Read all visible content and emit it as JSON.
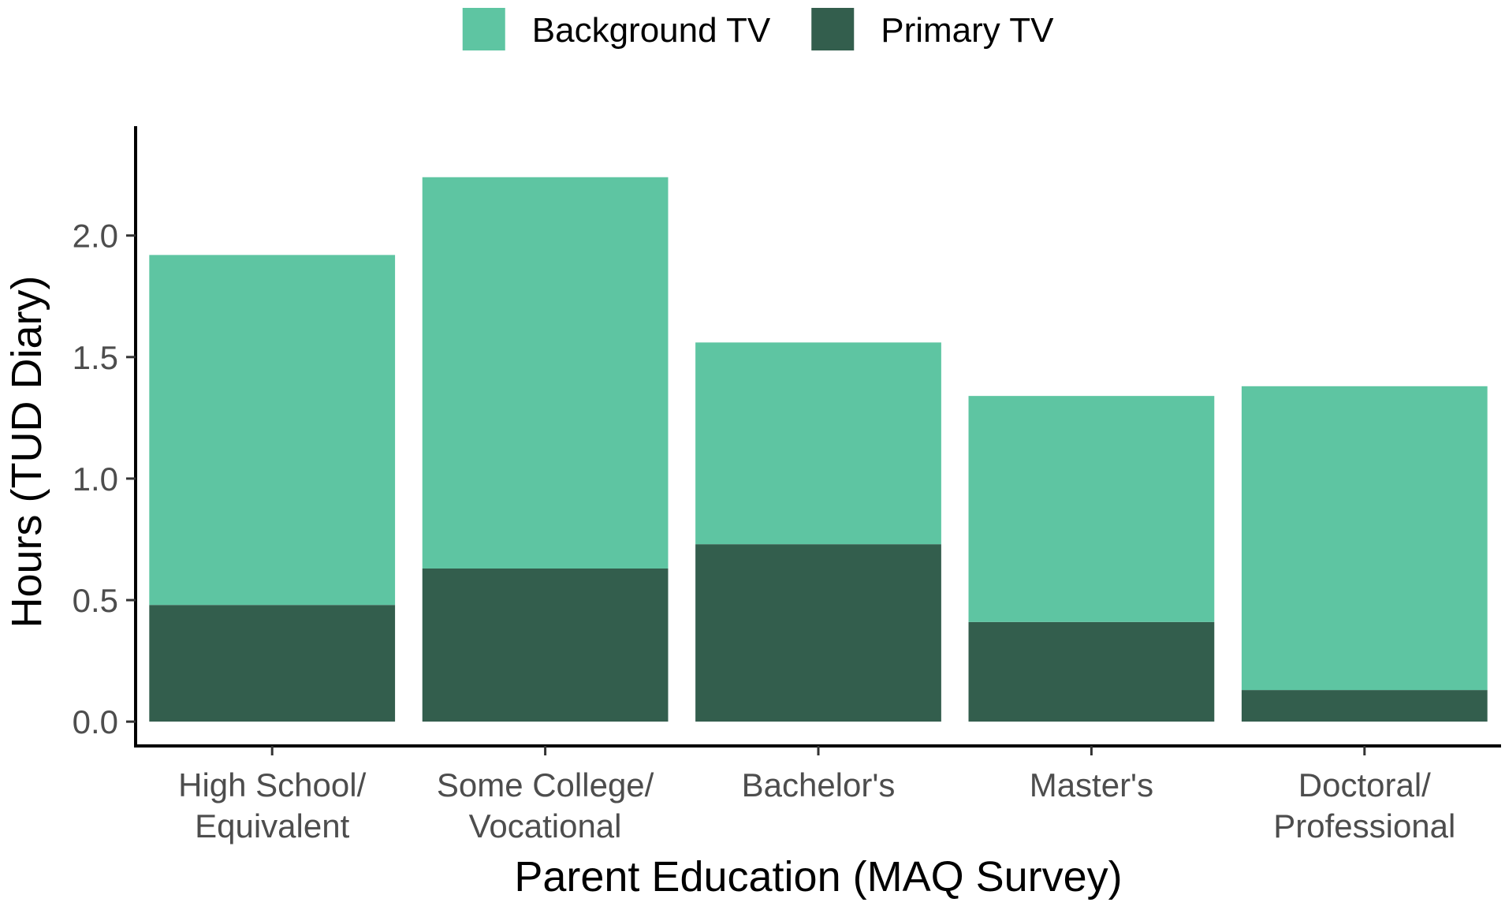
{
  "chart_data": {
    "type": "bar",
    "stacked": true,
    "categories": [
      [
        "High School/",
        "Equivalent"
      ],
      [
        "Some College/",
        "Vocational"
      ],
      [
        "Bachelor's"
      ],
      [
        "Master's"
      ],
      [
        "Doctoral/",
        "Professional"
      ]
    ],
    "series": [
      {
        "name": "Primary TV",
        "color": "#335e4d",
        "values": [
          0.48,
          0.63,
          0.73,
          0.41,
          0.13
        ]
      },
      {
        "name": "Background TV",
        "color": "#5ec5a2",
        "values": [
          1.44,
          1.61,
          0.83,
          0.93,
          1.25
        ]
      }
    ],
    "legend": {
      "position": "top",
      "items": [
        {
          "name": "Background TV",
          "color": "#5ec5a2"
        },
        {
          "name": "Primary TV",
          "color": "#335e4d"
        }
      ]
    },
    "xlabel": "Parent Education (MAQ Survey)",
    "ylabel": "Hours (TUD Diary)",
    "yticks": [
      "0.0",
      "0.5",
      "1.0",
      "1.5",
      "2.0"
    ],
    "ytick_values": [
      0,
      0.5,
      1.0,
      1.5,
      2.0
    ],
    "ylim": [
      -0.1,
      2.45
    ],
    "grid": false
  }
}
